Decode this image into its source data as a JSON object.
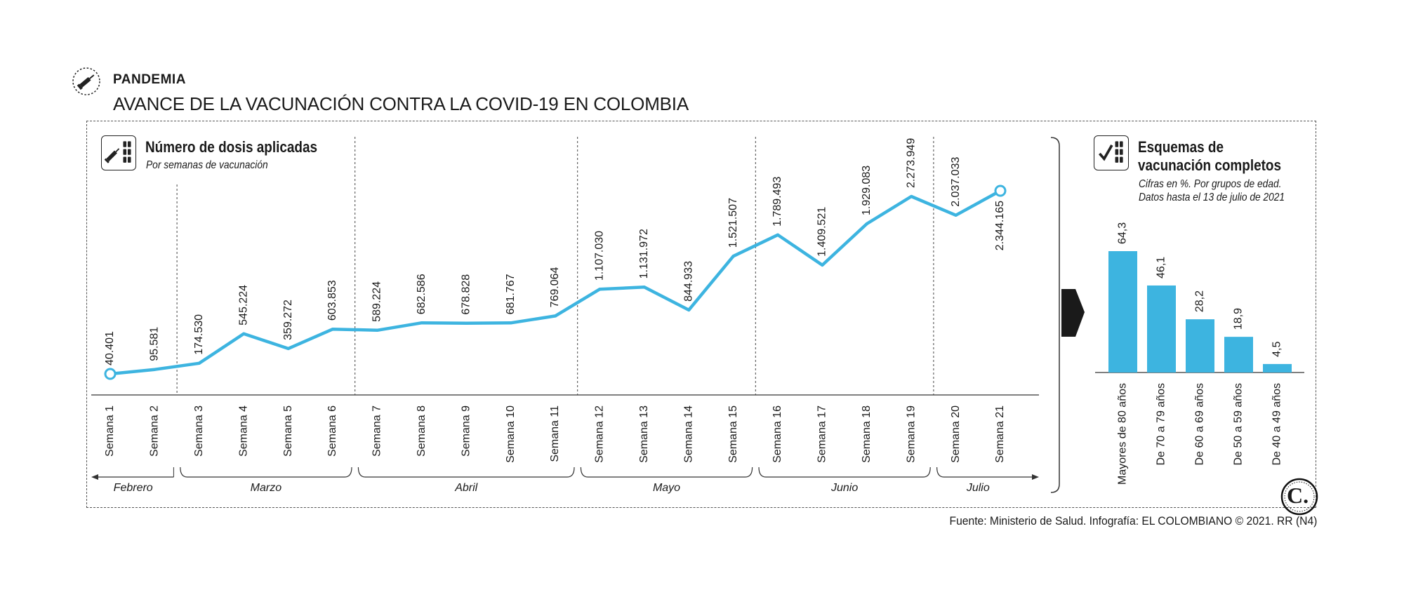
{
  "header": {
    "kicker": "PANDEMIA",
    "headline": "AVANCE DE LA VACUNACIÓN CONTRA LA COVID-19 EN COLOMBIA"
  },
  "colors": {
    "accent": "#3db4e0",
    "ink": "#1a1a1a",
    "rule": "#555555"
  },
  "left_panel": {
    "title": "Número de dosis aplicadas",
    "subtitle": "Por semanas de vacunación",
    "icon": "syringe-vials-icon"
  },
  "right_panel": {
    "title_line1": "Esquemas de",
    "title_line2": "vacunación completos",
    "subtitle_line1": "Cifras en %. Por grupos de edad.",
    "subtitle_line2": "Datos hasta el 13 de julio de 2021",
    "icon": "checkmark-vials-icon"
  },
  "source": "Fuente: Ministerio de Salud. Infografía: EL COLOMBIANO © 2021. RR (N4)",
  "logo_text": "C.",
  "chart_data": [
    {
      "type": "line",
      "title": "Número de dosis aplicadas",
      "subtitle": "Por semanas de vacunación",
      "categories": [
        "Semana 1",
        "Semana 2",
        "Semana 3",
        "Semana 4",
        "Semana 5",
        "Semana 6",
        "Semana 7",
        "Semana 8",
        "Semana 9",
        "Semana 10",
        "Semana 11",
        "Semana 12",
        "Semana 13",
        "Semana 14",
        "Semana 15",
        "Semana 16",
        "Semana 17",
        "Semana 18",
        "Semana 19",
        "Semana 20",
        "Semana 21"
      ],
      "values": [
        40401,
        95581,
        174530,
        545224,
        359272,
        603853,
        589224,
        682586,
        678828,
        681767,
        769064,
        1107030,
        1131972,
        844933,
        1521507,
        1789493,
        1409521,
        1929083,
        2273949,
        2037033,
        2344165
      ],
      "value_labels": [
        "40.401",
        "95.581",
        "174.530",
        "545.224",
        "359.272",
        "603.853",
        "589.224",
        "682.586",
        "678.828",
        "681.767",
        "769.064",
        "1.107.030",
        "1.131.972",
        "844.933",
        "1.521.507",
        "1.789.493",
        "1.409.521",
        "1.929.083",
        "2.273.949",
        "2.037.033",
        "2.344.165"
      ],
      "months": [
        {
          "name": "Febrero",
          "start": 0,
          "end": 1
        },
        {
          "name": "Marzo",
          "start": 2,
          "end": 5
        },
        {
          "name": "Abril",
          "start": 6,
          "end": 10
        },
        {
          "name": "Mayo",
          "start": 11,
          "end": 14
        },
        {
          "name": "Junio",
          "start": 15,
          "end": 18
        },
        {
          "name": "Julio",
          "start": 19,
          "end": 20
        }
      ],
      "ylim": [
        0,
        2500000
      ],
      "grid": false
    },
    {
      "type": "bar",
      "title": "Esquemas de vacunación completos",
      "subtitle": "Cifras en %. Por grupos de edad. Datos hasta el 13 de julio de 2021",
      "categories": [
        "Mayores de 80 años",
        "De 70 a 79 años",
        "De 60 a 69 años",
        "De 50 a 59 años",
        "De 40 a 49 años"
      ],
      "values": [
        64.3,
        46.1,
        28.2,
        18.9,
        4.5
      ],
      "value_labels": [
        "64,3",
        "46,1",
        "28,2",
        "18,9",
        "4,5"
      ],
      "ylim": [
        0,
        64.3
      ]
    }
  ]
}
